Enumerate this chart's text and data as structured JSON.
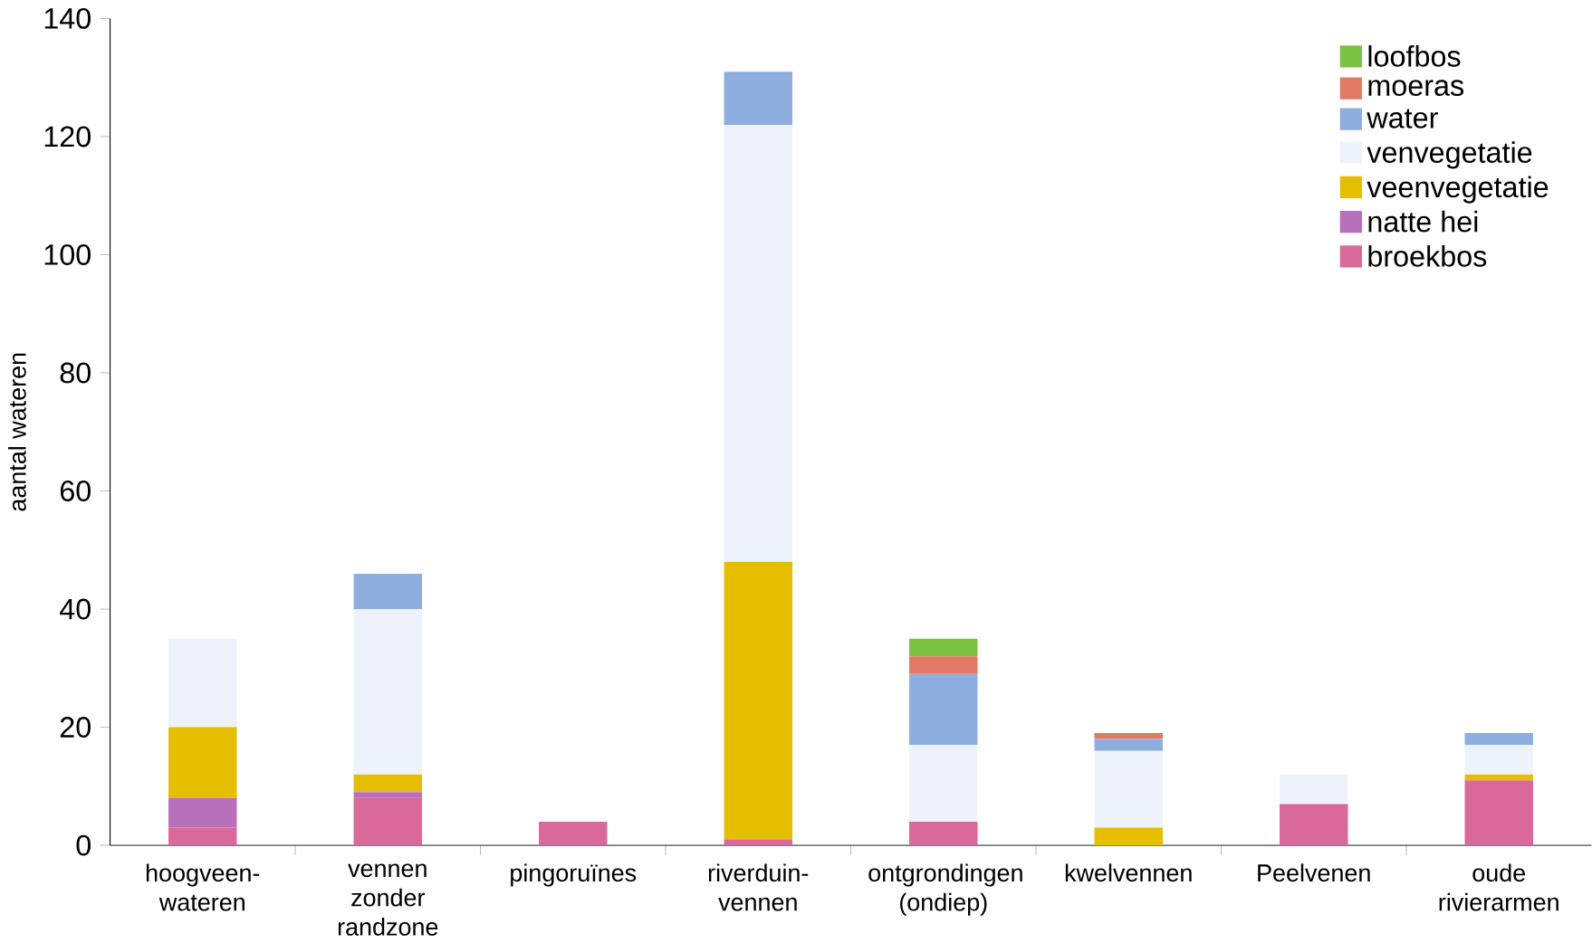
{
  "chart_data": {
    "type": "bar",
    "stacked": true,
    "ylabel": "aantal wateren",
    "categories": [
      "hoogveen-wateren",
      "vennen zonder randzone",
      "pingoruïnes",
      "riverduin-vennen",
      "ontgrondingen (ondiep)",
      "kwelvennen",
      "Peelvenen",
      "oude rivierarmen"
    ],
    "series": [
      {
        "name": "broekbos",
        "color": "#d9699a",
        "values": [
          3,
          8,
          4,
          1,
          4,
          0,
          7,
          11
        ]
      },
      {
        "name": "natte hei",
        "color": "#b86fbc",
        "values": [
          5,
          1,
          0,
          0,
          0,
          0,
          0,
          0
        ]
      },
      {
        "name": "veenvegetatie",
        "color": "#e6be00",
        "values": [
          12,
          3,
          0,
          47,
          0,
          3,
          0,
          1
        ]
      },
      {
        "name": "venvegetatie",
        "color": "#eef3fb",
        "values": [
          15,
          28,
          0,
          74,
          13,
          13,
          5,
          5
        ]
      },
      {
        "name": "water",
        "color": "#8eaee0",
        "values": [
          0,
          6,
          0,
          9,
          12,
          2,
          0,
          2
        ]
      },
      {
        "name": "moeras",
        "color": "#e07a64",
        "values": [
          0,
          0,
          0,
          0,
          3,
          1,
          0,
          0
        ]
      },
      {
        "name": "loofbos",
        "color": "#7cc242",
        "values": [
          0,
          0,
          0,
          0,
          3,
          0,
          0,
          0
        ]
      }
    ],
    "ylim": [
      0,
      140
    ],
    "yticks": [
      0,
      20,
      40,
      60,
      80,
      100,
      120,
      140
    ],
    "legend": "top right",
    "grid": false
  }
}
